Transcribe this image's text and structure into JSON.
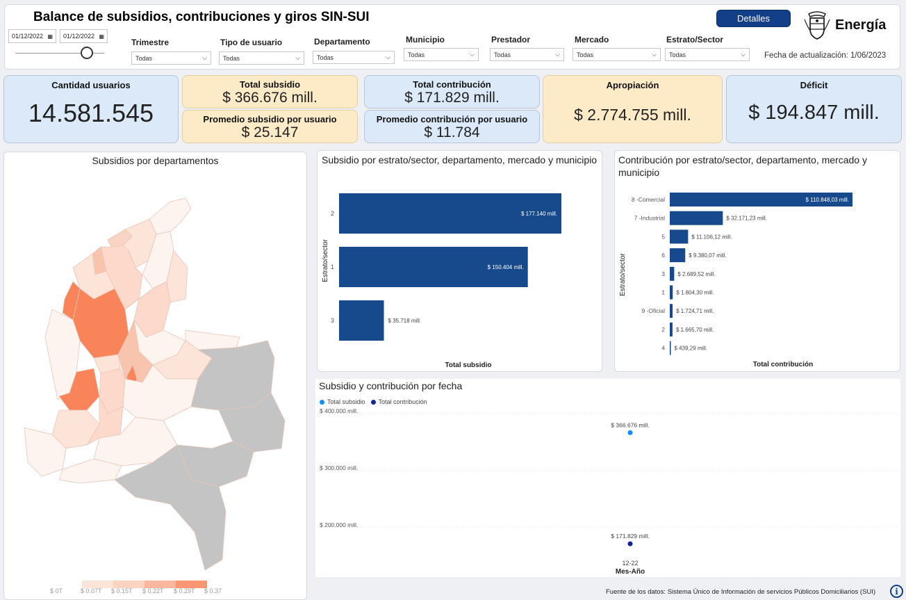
{
  "header": {
    "title": "Balance de subsidios, contribuciones y giros SIN-SUI",
    "details_label": "Detalles",
    "logo_text": "Energía",
    "update_text": "Fecha de actualización: 1/06/2023",
    "date_start": "01/12/2022",
    "date_end": "01/12/2022"
  },
  "filters": [
    {
      "label": "Trimestre",
      "value": "Todas"
    },
    {
      "label": "Tipo de usuario",
      "value": "Todas"
    },
    {
      "label": "Departamento",
      "value": "Todas"
    },
    {
      "label": "Municipio",
      "value": "Todas"
    },
    {
      "label": "Prestador",
      "value": "Todas"
    },
    {
      "label": "Mercado",
      "value": "Todas"
    },
    {
      "label": "Estrato/Sector",
      "value": "Todas"
    }
  ],
  "kpis": {
    "usuarios": {
      "label": "Cantidad usuarios",
      "value": "14.581.545"
    },
    "total_subsidio": {
      "label": "Total subsidio",
      "value": "$ 366.676 mill."
    },
    "prom_subsidio": {
      "label": "Promedio subsidio por usuario",
      "value": "$ 25.147"
    },
    "total_contribucion": {
      "label": "Total contribución",
      "value": "$ 171.829 mill."
    },
    "prom_contribucion": {
      "label": "Promedio contribución por usuario",
      "value": "$ 11.784"
    },
    "apropiacion": {
      "label": "Apropiación",
      "value": "$ 2.774.755 mill."
    },
    "deficit": {
      "label": "Déficit",
      "value": "$ 194.847 mill."
    }
  },
  "map": {
    "title": "Subsidios por departamentos",
    "legend": [
      "$ 0T",
      "$ 0.07T",
      "$ 0.15T",
      "$ 0.22T",
      "$ 0.29T",
      "$ 0.37"
    ],
    "colors": {
      "low": "#fdf3ef",
      "mid": "#f9c4ae",
      "high": "#fa8459",
      "none": "#c4c4c4"
    }
  },
  "subsidio_chart": {
    "title": "Subsidio por estrato/sector, departamento, mercado y municipio",
    "xlabel": "Total subsidio",
    "ylabel": "Estrato/sector",
    "color": "#174a8c",
    "max": 177.14,
    "categories": [
      "2",
      "1",
      "3"
    ],
    "values": [
      177.14,
      150.404,
      35.718
    ],
    "value_labels": [
      "$ 177.140 mill.",
      "$ 150.404 mill.",
      "$ 35.718 mill."
    ]
  },
  "contribucion_chart": {
    "title_line1": "Contribución por estrato/sector, departamento, mercado y",
    "title_line2": "municipio",
    "xlabel": "Total contribución",
    "ylabel": "Estrato/sector",
    "color": "#174a8c",
    "max": 110.84803,
    "categories": [
      "8 -Comercial",
      "7 -Industrial",
      "5",
      "6",
      "3",
      "1",
      "9 -Oficial",
      "2",
      "4"
    ],
    "values": [
      110.84803,
      32.17123,
      11.10612,
      9.38007,
      2.68952,
      1.8043,
      1.72471,
      1.6657,
      0.43929
    ],
    "value_labels": [
      "$ 110.848,03 mill.",
      "$ 32.171,23 mill.",
      "$ 11.106,12 mill.",
      "$ 9.380,07 mill.",
      "$ 2.689,52 mill.",
      "$ 1.804,30 mill.",
      "$ 1.724,71 mill.",
      "$ 1.665,70 mill.",
      "$ 439,29 mill."
    ]
  },
  "fecha_chart": {
    "title": "Subsidio y contribución por fecha",
    "xlabel": "Mes-Año",
    "x_category": "12-22",
    "yticks": [
      {
        "value": 400000,
        "label": "$ 400.000 mill."
      },
      {
        "value": 300000,
        "label": "$ 300.000 mill."
      },
      {
        "value": 200000,
        "label": "$ 200.000 mill."
      }
    ],
    "series": [
      {
        "name": "Total subsidio",
        "color": "#118dff",
        "value": 366676,
        "label": "$ 366.676 mill."
      },
      {
        "name": "Total contribución",
        "color": "#12239e",
        "value": 171829,
        "label": "$ 171.829 mill."
      }
    ]
  },
  "footer": {
    "source": "Fuente de los datos: Sistema Único de Información de servicios Públicos Domiciliarios (SUI)",
    "info_glyph": "i"
  }
}
